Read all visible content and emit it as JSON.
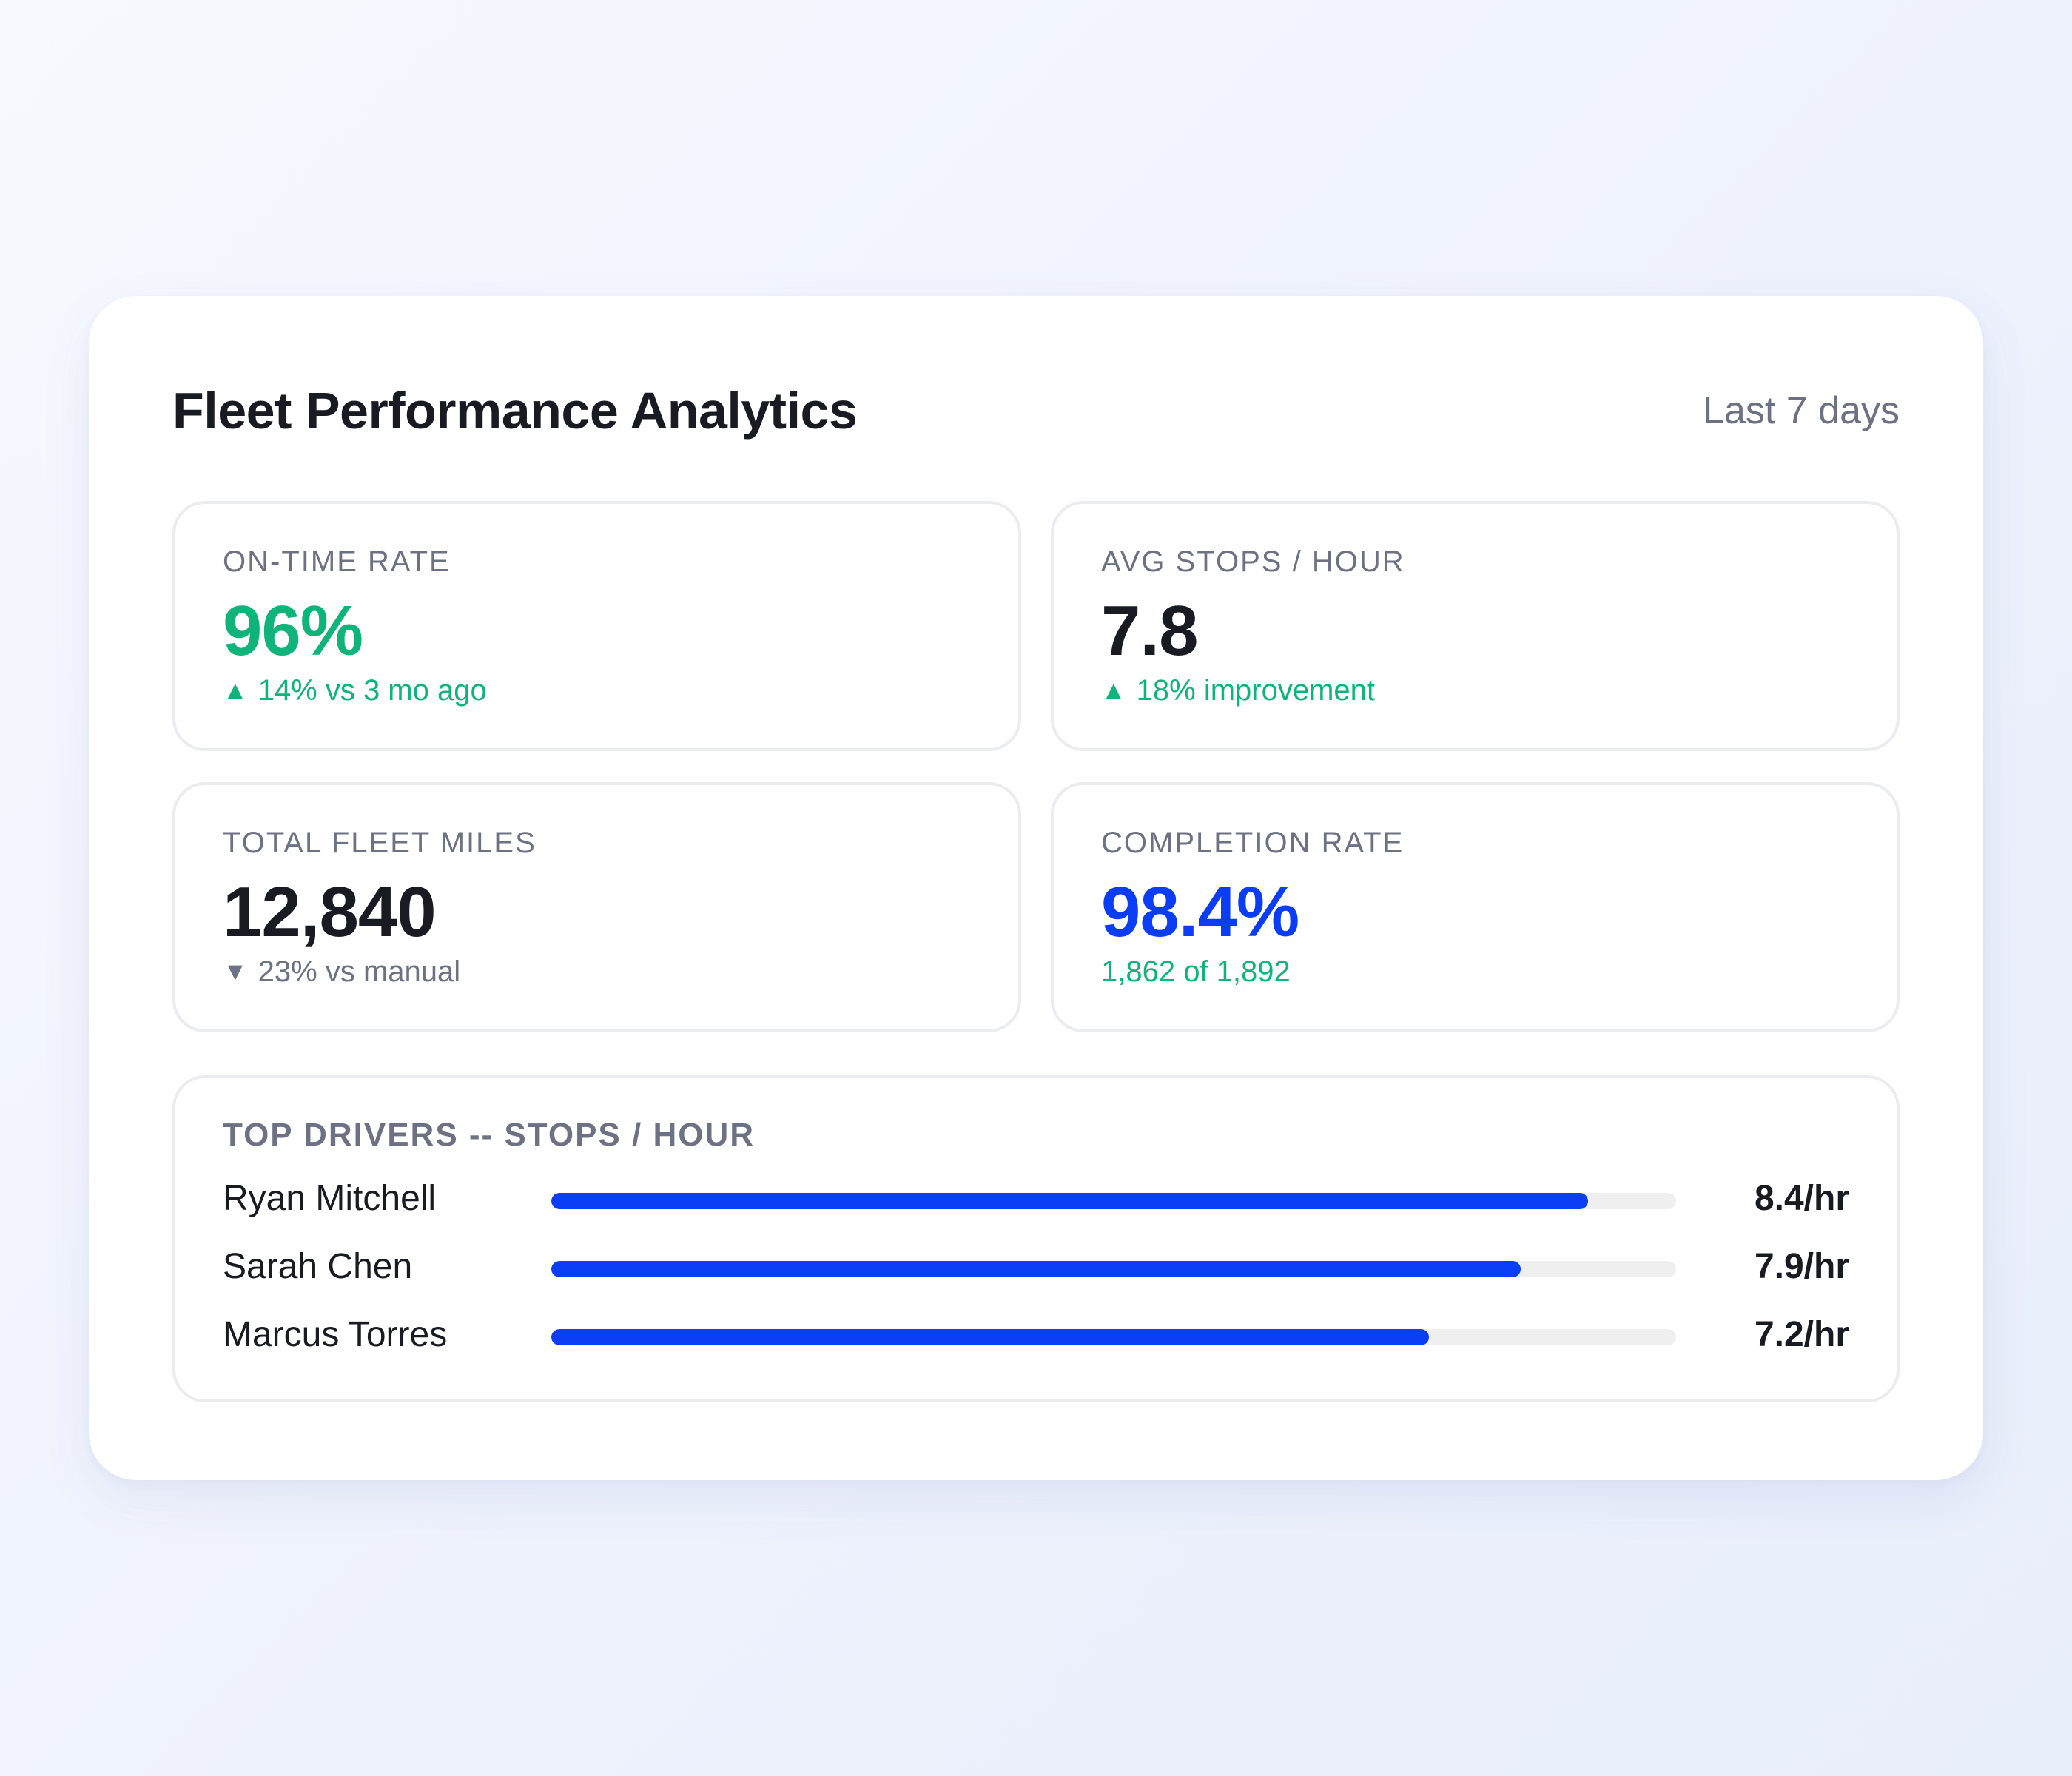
{
  "header": {
    "title": "Fleet Performance Analytics",
    "range": "Last 7 days"
  },
  "metrics": [
    {
      "label": "ON-TIME RATE",
      "value": "96%",
      "trend_glyph": "▲",
      "change": "14% vs 3 mo ago",
      "value_color": "#10b37a",
      "change_color": "#10b37a"
    },
    {
      "label": "AVG STOPS / HOUR",
      "value": "7.8",
      "trend_glyph": "▲",
      "change": "18% improvement",
      "value_color": "#191b22",
      "change_color": "#10b37a"
    },
    {
      "label": "TOTAL FLEET MILES",
      "value": "12,840",
      "trend_glyph": "▼",
      "change": "23% vs manual",
      "value_color": "#191b22",
      "change_color": "#6c7283"
    },
    {
      "label": "COMPLETION RATE",
      "value": "98.4%",
      "trend_glyph": "",
      "change": "1,862 of 1,892",
      "value_color": "#0b3df6",
      "change_color": "#10b37a"
    }
  ],
  "drivers": {
    "label": "TOP DRIVERS -- STOPS / HOUR",
    "items": [
      {
        "name": "Ryan Mitchell",
        "value": "8.4/hr",
        "bar_fraction": 0.922
      },
      {
        "name": "Sarah Chen",
        "value": "7.9/hr",
        "bar_fraction": 0.862
      },
      {
        "name": "Marcus Torres",
        "value": "7.2/hr",
        "bar_fraction": 0.78
      }
    ],
    "bar_color": "#0b3df6",
    "track_color": "#efefef"
  }
}
